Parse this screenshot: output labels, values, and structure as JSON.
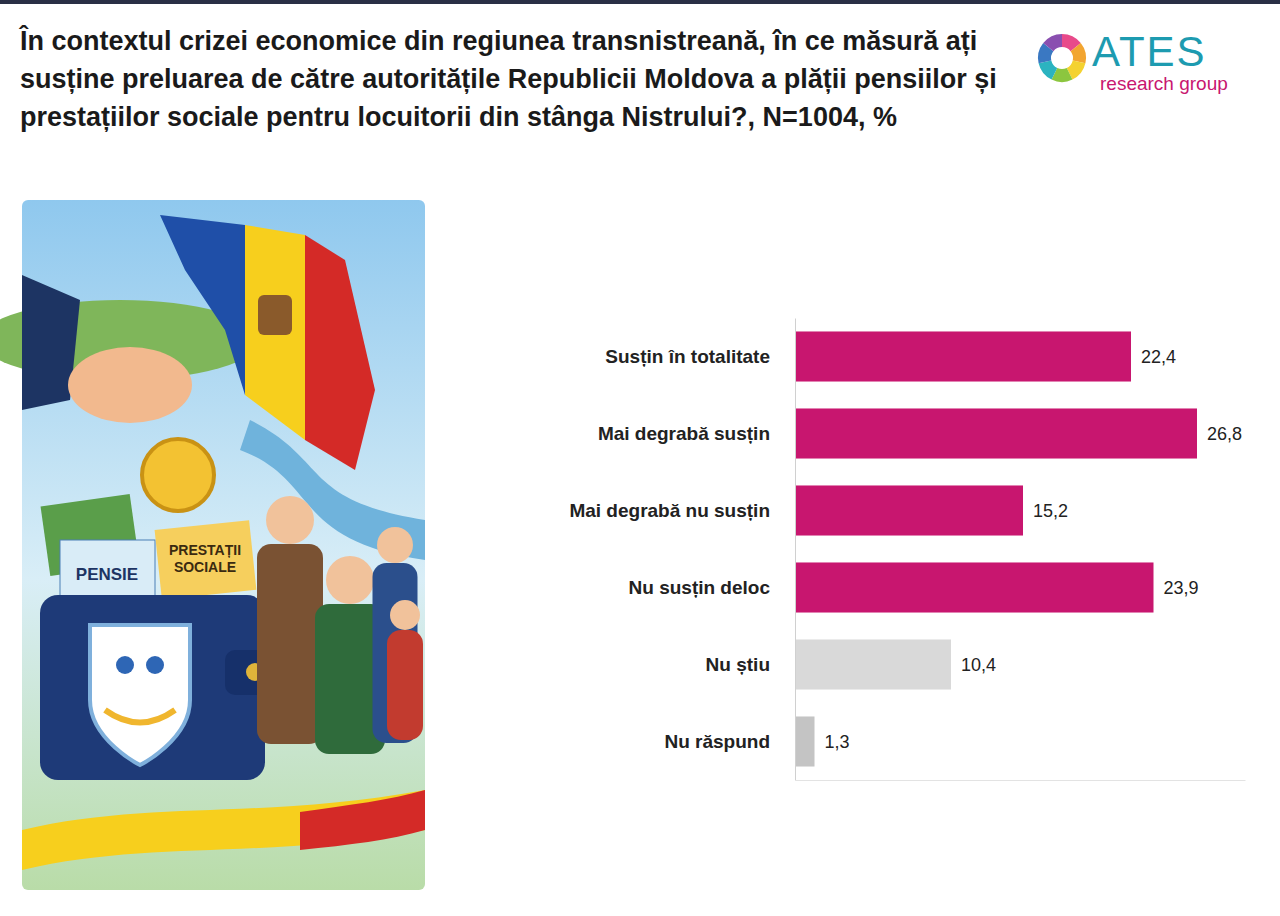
{
  "chart_data": {
    "type": "bar",
    "orientation": "horizontal",
    "title": "În contextul crizei economice din regiunea transnistreană, în ce măsură ați susține preluarea de către autoritățile Republicii Moldova a plății pensiilor și prestațiilor sociale pentru locuitorii din stânga Nistrului?, N=1004, %",
    "annotations": [
      "ATES",
      "research group",
      "PENSIE",
      "PRESTAȚII SOCIALE"
    ],
    "categories": [
      "Susțin în totalitate",
      "Mai degrabă susțin",
      "Mai degrabă nu susțin",
      "Nu susțin deloc",
      "Nu știu",
      "Nu răspund"
    ],
    "values": [
      22.4,
      26.8,
      15.2,
      23.9,
      10.4,
      1.3
    ],
    "value_labels": [
      "22,4",
      "26,8",
      "15,2",
      "23,9",
      "10,4",
      "1,3"
    ],
    "colors": [
      "#c8166f",
      "#c8166f",
      "#c8166f",
      "#c8166f",
      "#d9d9d9",
      "#c4c4c4"
    ],
    "xlim": [
      0,
      30
    ],
    "data_labels": true,
    "tick_labels": "y",
    "grid": false
  }
}
